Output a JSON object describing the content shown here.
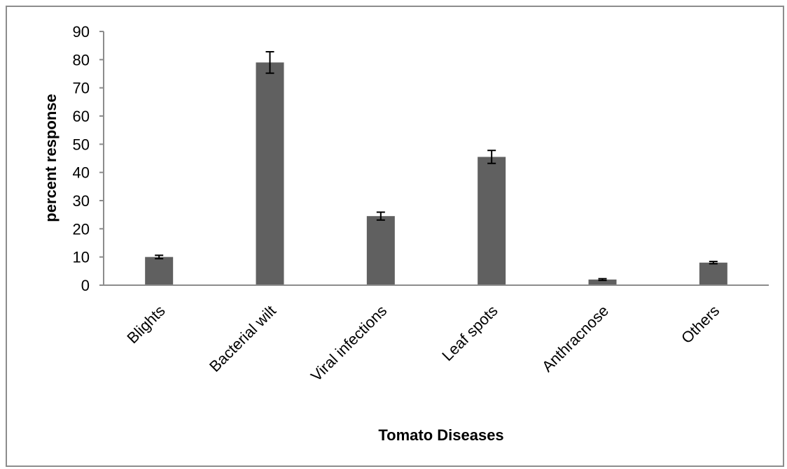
{
  "chart_data": {
    "type": "bar",
    "title": "",
    "xlabel": "Tomato Diseases",
    "ylabel": "percent response",
    "ylim": [
      0,
      90
    ],
    "yticks": [
      0,
      10,
      20,
      30,
      40,
      50,
      60,
      70,
      80,
      90
    ],
    "grid": false,
    "legend": "none",
    "categories": [
      "Blights",
      "Bacterial wilt",
      "Viral infections",
      "Leaf spots",
      "Anthracnose",
      "Others"
    ],
    "series": [
      {
        "values": [
          10,
          79,
          24.5,
          45.5,
          2,
          8
        ],
        "errors": [
          0.6,
          3.8,
          1.4,
          2.3,
          0.3,
          0.4
        ]
      }
    ],
    "colors": {
      "bar": "#606060",
      "axis": "#8c8c8c",
      "error_bar": "#000000"
    }
  }
}
